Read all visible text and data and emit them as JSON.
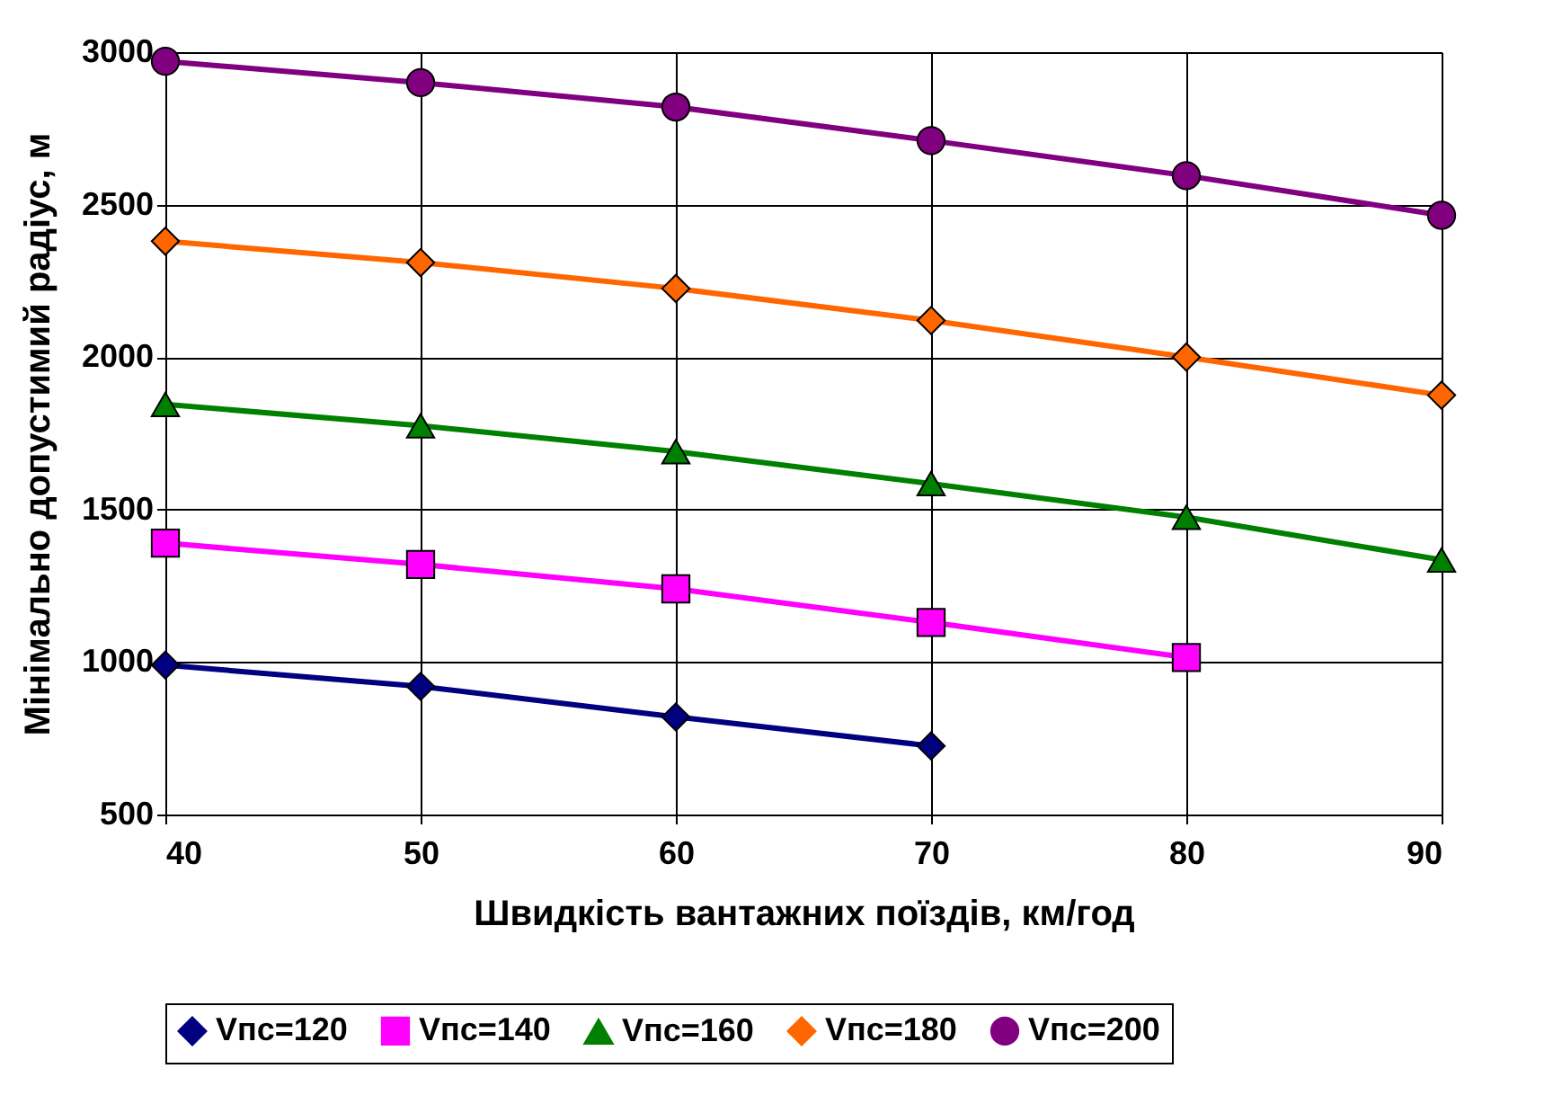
{
  "chart_data": {
    "type": "line",
    "xlabel": "Швидкість вантажних поїздів, км/год",
    "ylabel": "Мінімально допустимий радіус, м",
    "x": [
      40,
      50,
      60,
      70,
      80,
      90
    ],
    "xlim": [
      40,
      90
    ],
    "xticks": [
      40,
      50,
      60,
      70,
      80,
      90
    ],
    "ylim": [
      500,
      3000
    ],
    "yticks": [
      500,
      1000,
      1500,
      2000,
      2500,
      3000
    ],
    "grid": true,
    "legend": "bottom",
    "line_style": "solid",
    "series": [
      {
        "name": "Vпс=120",
        "color": "#000080",
        "marker": "diamond",
        "values": [
          990,
          920,
          820,
          725,
          null,
          null
        ]
      },
      {
        "name": "Vпс=140",
        "color": "#ff00ff",
        "marker": "square",
        "values": [
          1390,
          1320,
          1240,
          1130,
          1015,
          null
        ]
      },
      {
        "name": "Vпс=160",
        "color": "#008000",
        "marker": "triangle",
        "values": [
          1845,
          1775,
          1690,
          1585,
          1475,
          1335
        ]
      },
      {
        "name": "Vпс=180",
        "color": "#ff6600",
        "marker": "diamond",
        "values": [
          2380,
          2310,
          2225,
          2120,
          2000,
          1875
        ]
      },
      {
        "name": "Vпс=200",
        "color": "#800080",
        "marker": "circle",
        "values": [
          2970,
          2900,
          2820,
          2710,
          2595,
          2465
        ]
      }
    ]
  }
}
